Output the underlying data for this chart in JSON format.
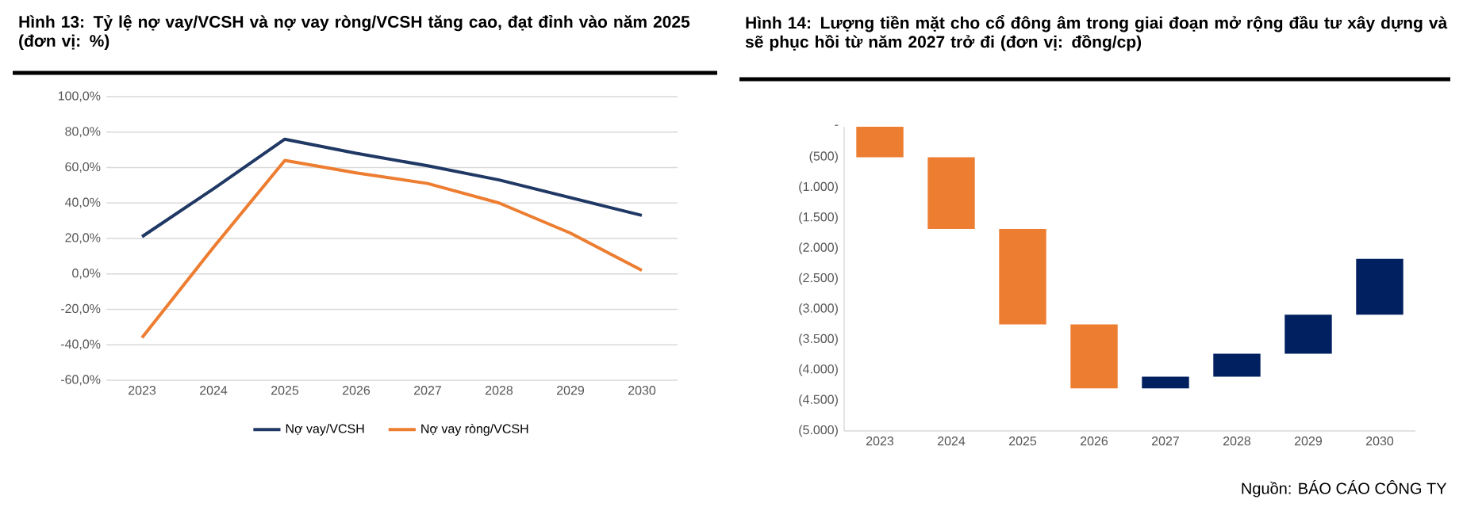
{
  "chart_data": [
    {
      "type": "line",
      "title": "Hình 13: Tỷ lệ nợ vay/VCSH và nợ vay ròng/VCSH tăng cao, đạt đỉnh vào năm 2025 (đơn vị: %)",
      "categories": [
        "2023",
        "2024",
        "2025",
        "2026",
        "2027",
        "2028",
        "2029",
        "2030"
      ],
      "series": [
        {
          "name": "Nợ vay/VCSH",
          "color": "#1f3864",
          "values": [
            21,
            48,
            76,
            68,
            61,
            53,
            43,
            33
          ]
        },
        {
          "name": "Nợ vay ròng/VCSH",
          "color": "#ed7d31",
          "values": [
            -36,
            15,
            64,
            57,
            51,
            40,
            23,
            2
          ]
        }
      ],
      "ylim": [
        -60,
        100
      ],
      "yticks": [
        {
          "value": -60,
          "label": "-60,0%"
        },
        {
          "value": -40,
          "label": "-40,0%"
        },
        {
          "value": -20,
          "label": "-20,0%"
        },
        {
          "value": 0,
          "label": "0,0%"
        },
        {
          "value": 20,
          "label": "20,0%"
        },
        {
          "value": 40,
          "label": "40,0%"
        },
        {
          "value": 60,
          "label": "60,0%"
        },
        {
          "value": 80,
          "label": "80,0%"
        },
        {
          "value": 100,
          "label": "100,0%"
        }
      ],
      "grid": "y",
      "legend": "bottom",
      "marker": "none",
      "line_style": "solid"
    },
    {
      "type": "bar",
      "title": "Hình 14: Lượng tiền mặt cho cổ đông âm trong giai đoạn mở rộng đầu tư xây dựng và sẽ phục hồi từ năm 2027 trở đi (đơn vị: đồng/cp)",
      "categories": [
        "2023",
        "2024",
        "2025",
        "2026",
        "2027",
        "2028",
        "2029",
        "2030"
      ],
      "base": [
        0,
        -500,
        -1680,
        -3250,
        -4300,
        -4110,
        -3730,
        -3090
      ],
      "values": [
        -500,
        -1180,
        -1570,
        -1050,
        190,
        380,
        640,
        920
      ],
      "colors": [
        "#ed7d31",
        "#ed7d31",
        "#ed7d31",
        "#ed7d31",
        "#002060",
        "#002060",
        "#002060",
        "#002060"
      ],
      "ylim": [
        -5000,
        0
      ],
      "yticks": [
        {
          "value": -5000,
          "label": "(5.000)"
        },
        {
          "value": -4500,
          "label": "(4.500)"
        },
        {
          "value": -4000,
          "label": "(4.000)"
        },
        {
          "value": -3500,
          "label": "(3.500)"
        },
        {
          "value": -3000,
          "label": "(3.000)"
        },
        {
          "value": -2500,
          "label": "(2.500)"
        },
        {
          "value": -2000,
          "label": "(2.000)"
        },
        {
          "value": -1500,
          "label": "(1.500)"
        },
        {
          "value": -1000,
          "label": "(1.000)"
        },
        {
          "value": -500,
          "label": "(500)"
        },
        {
          "value": 0,
          "label": "-"
        }
      ],
      "annotations": [
        "Nguồn: BÁO CÁO CÔNG TY"
      ]
    }
  ]
}
